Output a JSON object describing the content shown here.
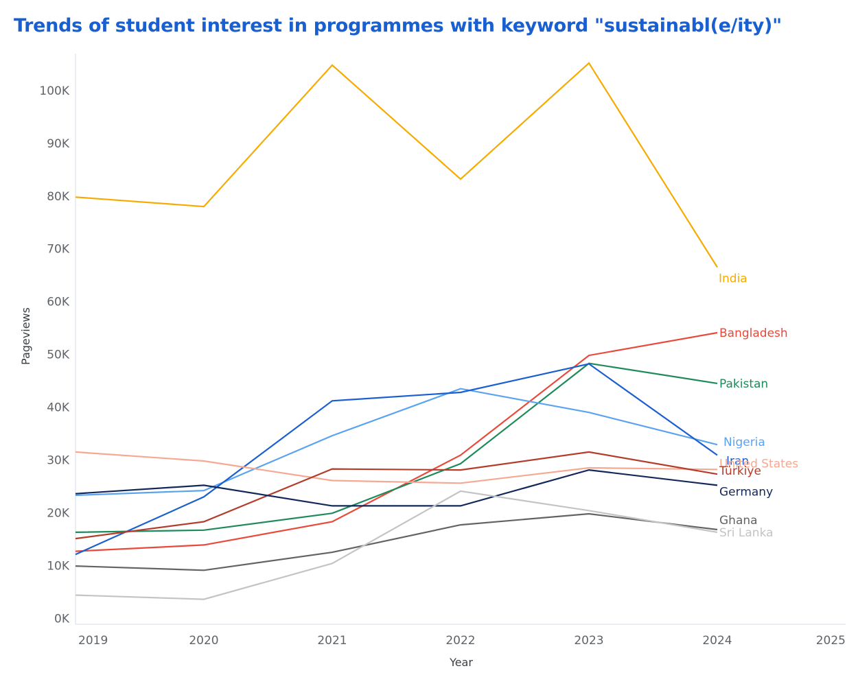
{
  "chart_data": {
    "type": "line",
    "title": "Trends of student interest in programmes with keyword \"sustainabl(e/ity)\"",
    "xlabel": "Year",
    "ylabel": "Pageviews",
    "x_ticks": [
      "2019",
      "2020",
      "2021",
      "2022",
      "2023",
      "2024",
      "2025"
    ],
    "y_ticks": [
      "0K",
      "10K",
      "20K",
      "30K",
      "40K",
      "50K",
      "60K",
      "70K",
      "80K",
      "90K",
      "100K"
    ],
    "xlim": [
      2019,
      2025
    ],
    "ylim": [
      -1000,
      107000
    ],
    "grid": false,
    "legend": "direct labels at line ends",
    "x": [
      2019,
      2020,
      2021,
      2022,
      2023,
      2024
    ],
    "series": [
      {
        "name": "India",
        "color": "#f5ab00",
        "values": [
          79800,
          78000,
          104800,
          83200,
          105200,
          66500
        ]
      },
      {
        "name": "Bangladesh",
        "color": "#e8493a",
        "values": [
          12700,
          13900,
          18300,
          30900,
          49800,
          54100
        ]
      },
      {
        "name": "Pakistan",
        "color": "#1e8a5a",
        "values": [
          16300,
          16700,
          19900,
          29300,
          48300,
          44500
        ]
      },
      {
        "name": "Nigeria",
        "color": "#5ba3f0",
        "values": [
          23300,
          24200,
          34600,
          43500,
          39000,
          32900
        ]
      },
      {
        "name": "Iran",
        "color": "#1a5fd0",
        "values": [
          12100,
          23000,
          41200,
          42800,
          48200,
          30900
        ]
      },
      {
        "name": "United States",
        "color": "#f6a892",
        "values": [
          31500,
          29800,
          26100,
          25600,
          28500,
          28200
        ]
      },
      {
        "name": "Türkiye",
        "color": "#b33c2a",
        "values": [
          15100,
          18300,
          28300,
          28100,
          31500,
          27300
        ]
      },
      {
        "name": "Germany",
        "color": "#12285a",
        "values": [
          23600,
          25200,
          21300,
          21300,
          28100,
          25200
        ]
      },
      {
        "name": "Ghana",
        "color": "#636363",
        "values": [
          9900,
          9100,
          12500,
          17700,
          19800,
          16800
        ]
      },
      {
        "name": "Sri Lanka",
        "color": "#c4c4c4",
        "values": [
          4400,
          3600,
          10400,
          24100,
          20400,
          16300
        ]
      }
    ]
  }
}
